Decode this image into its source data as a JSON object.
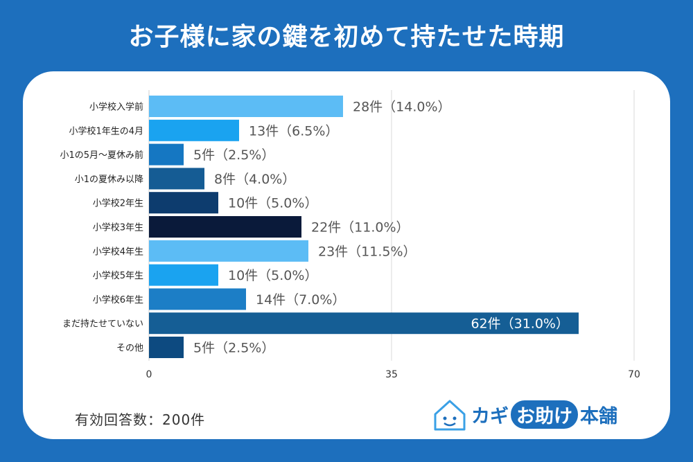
{
  "title": "お子様に家の鍵を初めて持たせた時期",
  "footer": {
    "total_label": "有効回答数：200件"
  },
  "logo": {
    "part1": "カギ",
    "part2": "お助け",
    "part3": "本舗"
  },
  "chart_data": {
    "type": "bar",
    "orientation": "horizontal",
    "categories": [
      "小学校入学前",
      "小学校1年生の4月",
      "小1の5月～夏休み前",
      "小1の夏休み以降",
      "小学校2年生",
      "小学校3年生",
      "小学校4年生",
      "小学校5年生",
      "小学校6年生",
      "まだ持たせていない",
      "その他"
    ],
    "values": [
      28,
      13,
      5,
      8,
      10,
      22,
      23,
      10,
      14,
      62,
      5
    ],
    "value_labels": [
      "28件（14.0%）",
      "13件（6.5%）",
      "5件（2.5%）",
      "8件（4.0%）",
      "10件（5.0%）",
      "22件（11.0%）",
      "23件（11.5%）",
      "10件（5.0%）",
      "14件（7.0%）",
      "62件（31.0%）",
      "5件（2.5%）"
    ],
    "colors": [
      "#5cbcf5",
      "#1aa3f0",
      "#1577c2",
      "#155c94",
      "#0d3c6e",
      "#0a1a3a",
      "#5cbcf5",
      "#1aa3f0",
      "#1c7ec6",
      "#155e95",
      "#0d4a80"
    ],
    "xlim": [
      0,
      70
    ],
    "xticks": [
      0,
      35,
      70
    ],
    "xtick_labels": [
      "0",
      "35",
      "70"
    ],
    "grid": true
  }
}
